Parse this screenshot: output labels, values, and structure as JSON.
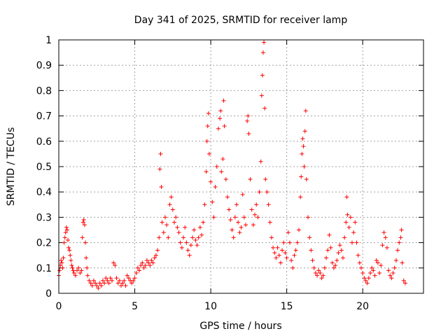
{
  "chart_data": {
    "type": "scatter",
    "title": "Day 341 of 2025, SRMTID for receiver lamp",
    "xlabel": "GPS time / hours",
    "ylabel": "SRMTID / TECUs",
    "xlim": [
      0,
      24
    ],
    "ylim": [
      0,
      1
    ],
    "x_ticks": [
      0,
      5,
      10,
      15,
      20
    ],
    "x_tick_labels": [
      "0",
      "5",
      "10",
      "15",
      "20"
    ],
    "y_ticks": [
      0,
      0.1,
      0.2,
      0.3,
      0.4,
      0.5,
      0.6,
      0.7,
      0.8,
      0.9,
      1
    ],
    "y_tick_labels": [
      "0",
      "0.1",
      "0.2",
      "0.3",
      "0.4",
      "0.5",
      "0.6",
      "0.7",
      "0.8",
      "0.9",
      "1"
    ],
    "grid": true,
    "marker": "+",
    "color": "#ff0000",
    "series": [
      {
        "name": "SRMTID",
        "points": [
          [
            0.0,
            0.07
          ],
          [
            0.05,
            0.09
          ],
          [
            0.1,
            0.11
          ],
          [
            0.15,
            0.13
          ],
          [
            0.2,
            0.12
          ],
          [
            0.25,
            0.1
          ],
          [
            0.3,
            0.14
          ],
          [
            0.35,
            0.2
          ],
          [
            0.4,
            0.22
          ],
          [
            0.45,
            0.24
          ],
          [
            0.5,
            0.26
          ],
          [
            0.55,
            0.25
          ],
          [
            0.6,
            0.21
          ],
          [
            0.65,
            0.18
          ],
          [
            0.7,
            0.17
          ],
          [
            0.75,
            0.15
          ],
          [
            0.8,
            0.13
          ],
          [
            0.85,
            0.11
          ],
          [
            0.9,
            0.1
          ],
          [
            0.95,
            0.09
          ],
          [
            1.0,
            0.08
          ],
          [
            1.1,
            0.07
          ],
          [
            1.2,
            0.09
          ],
          [
            1.3,
            0.1
          ],
          [
            1.4,
            0.08
          ],
          [
            1.5,
            0.09
          ],
          [
            1.55,
            0.22
          ],
          [
            1.6,
            0.28
          ],
          [
            1.65,
            0.29
          ],
          [
            1.7,
            0.27
          ],
          [
            1.75,
            0.2
          ],
          [
            1.8,
            0.14
          ],
          [
            1.85,
            0.1
          ],
          [
            1.9,
            0.07
          ],
          [
            2.0,
            0.05
          ],
          [
            2.1,
            0.04
          ],
          [
            2.2,
            0.03
          ],
          [
            2.3,
            0.05
          ],
          [
            2.4,
            0.04
          ],
          [
            2.5,
            0.03
          ],
          [
            2.6,
            0.02
          ],
          [
            2.7,
            0.04
          ],
          [
            2.8,
            0.03
          ],
          [
            2.9,
            0.05
          ],
          [
            3.0,
            0.04
          ],
          [
            3.1,
            0.06
          ],
          [
            3.2,
            0.05
          ],
          [
            3.3,
            0.04
          ],
          [
            3.4,
            0.06
          ],
          [
            3.5,
            0.05
          ],
          [
            3.6,
            0.12
          ],
          [
            3.7,
            0.11
          ],
          [
            3.8,
            0.06
          ],
          [
            3.9,
            0.04
          ],
          [
            4.0,
            0.05
          ],
          [
            4.1,
            0.03
          ],
          [
            4.2,
            0.04
          ],
          [
            4.3,
            0.05
          ],
          [
            4.4,
            0.03
          ],
          [
            4.5,
            0.07
          ],
          [
            4.6,
            0.06
          ],
          [
            4.7,
            0.05
          ],
          [
            4.8,
            0.04
          ],
          [
            4.9,
            0.05
          ],
          [
            5.0,
            0.06
          ],
          [
            5.1,
            0.08
          ],
          [
            5.2,
            0.1
          ],
          [
            5.3,
            0.09
          ],
          [
            5.4,
            0.11
          ],
          [
            5.5,
            0.12
          ],
          [
            5.6,
            0.1
          ],
          [
            5.7,
            0.11
          ],
          [
            5.8,
            0.13
          ],
          [
            5.9,
            0.12
          ],
          [
            6.0,
            0.11
          ],
          [
            6.1,
            0.13
          ],
          [
            6.2,
            0.12
          ],
          [
            6.3,
            0.14
          ],
          [
            6.4,
            0.15
          ],
          [
            6.5,
            0.17
          ],
          [
            6.6,
            0.22
          ],
          [
            6.65,
            0.49
          ],
          [
            6.7,
            0.55
          ],
          [
            6.75,
            0.42
          ],
          [
            6.8,
            0.28
          ],
          [
            6.9,
            0.24
          ],
          [
            7.0,
            0.3
          ],
          [
            7.1,
            0.27
          ],
          [
            7.2,
            0.22
          ],
          [
            7.3,
            0.35
          ],
          [
            7.4,
            0.38
          ],
          [
            7.5,
            0.33
          ],
          [
            7.6,
            0.28
          ],
          [
            7.7,
            0.3
          ],
          [
            7.8,
            0.26
          ],
          [
            7.9,
            0.24
          ],
          [
            8.0,
            0.2
          ],
          [
            8.1,
            0.18
          ],
          [
            8.2,
            0.22
          ],
          [
            8.3,
            0.26
          ],
          [
            8.4,
            0.2
          ],
          [
            8.5,
            0.17
          ],
          [
            8.6,
            0.15
          ],
          [
            8.7,
            0.19
          ],
          [
            8.8,
            0.22
          ],
          [
            8.9,
            0.25
          ],
          [
            9.0,
            0.21
          ],
          [
            9.1,
            0.19
          ],
          [
            9.2,
            0.22
          ],
          [
            9.3,
            0.26
          ],
          [
            9.4,
            0.23
          ],
          [
            9.5,
            0.28
          ],
          [
            9.6,
            0.35
          ],
          [
            9.7,
            0.48
          ],
          [
            9.75,
            0.6
          ],
          [
            9.8,
            0.66
          ],
          [
            9.85,
            0.71
          ],
          [
            9.9,
            0.55
          ],
          [
            10.0,
            0.44
          ],
          [
            10.1,
            0.36
          ],
          [
            10.2,
            0.3
          ],
          [
            10.3,
            0.42
          ],
          [
            10.4,
            0.5
          ],
          [
            10.5,
            0.65
          ],
          [
            10.6,
            0.69
          ],
          [
            10.65,
            0.72
          ],
          [
            10.7,
            0.48
          ],
          [
            10.8,
            0.53
          ],
          [
            10.85,
            0.76
          ],
          [
            10.9,
            0.66
          ],
          [
            11.0,
            0.45
          ],
          [
            11.1,
            0.38
          ],
          [
            11.2,
            0.33
          ],
          [
            11.3,
            0.29
          ],
          [
            11.4,
            0.25
          ],
          [
            11.5,
            0.22
          ],
          [
            11.6,
            0.3
          ],
          [
            11.7,
            0.35
          ],
          [
            11.8,
            0.28
          ],
          [
            11.9,
            0.24
          ],
          [
            12.0,
            0.26
          ],
          [
            12.1,
            0.39
          ],
          [
            12.2,
            0.3
          ],
          [
            12.3,
            0.27
          ],
          [
            12.4,
            0.68
          ],
          [
            12.45,
            0.7
          ],
          [
            12.5,
            0.63
          ],
          [
            12.6,
            0.45
          ],
          [
            12.7,
            0.33
          ],
          [
            12.8,
            0.27
          ],
          [
            12.9,
            0.31
          ],
          [
            13.0,
            0.35
          ],
          [
            13.1,
            0.3
          ],
          [
            13.2,
            0.4
          ],
          [
            13.3,
            0.52
          ],
          [
            13.35,
            0.78
          ],
          [
            13.4,
            0.86
          ],
          [
            13.45,
            0.95
          ],
          [
            13.5,
            0.99
          ],
          [
            13.55,
            0.73
          ],
          [
            13.6,
            0.45
          ],
          [
            13.7,
            0.4
          ],
          [
            13.8,
            0.35
          ],
          [
            13.9,
            0.28
          ],
          [
            14.0,
            0.22
          ],
          [
            14.1,
            0.18
          ],
          [
            14.2,
            0.16
          ],
          [
            14.3,
            0.14
          ],
          [
            14.4,
            0.18
          ],
          [
            14.5,
            0.15
          ],
          [
            14.6,
            0.12
          ],
          [
            14.7,
            0.17
          ],
          [
            14.8,
            0.2
          ],
          [
            14.9,
            0.16
          ],
          [
            15.0,
            0.14
          ],
          [
            15.1,
            0.24
          ],
          [
            15.2,
            0.2
          ],
          [
            15.3,
            0.13
          ],
          [
            15.4,
            0.1
          ],
          [
            15.5,
            0.15
          ],
          [
            15.6,
            0.17
          ],
          [
            15.7,
            0.2
          ],
          [
            15.8,
            0.25
          ],
          [
            15.9,
            0.38
          ],
          [
            15.95,
            0.46
          ],
          [
            16.0,
            0.55
          ],
          [
            16.05,
            0.61
          ],
          [
            16.1,
            0.58
          ],
          [
            16.15,
            0.5
          ],
          [
            16.2,
            0.64
          ],
          [
            16.25,
            0.72
          ],
          [
            16.3,
            0.45
          ],
          [
            16.4,
            0.3
          ],
          [
            16.5,
            0.22
          ],
          [
            16.6,
            0.17
          ],
          [
            16.7,
            0.13
          ],
          [
            16.8,
            0.1
          ],
          [
            16.9,
            0.08
          ],
          [
            17.0,
            0.07
          ],
          [
            17.1,
            0.09
          ],
          [
            17.2,
            0.08
          ],
          [
            17.3,
            0.06
          ],
          [
            17.4,
            0.07
          ],
          [
            17.5,
            0.1
          ],
          [
            17.6,
            0.14
          ],
          [
            17.7,
            0.17
          ],
          [
            17.8,
            0.23
          ],
          [
            17.9,
            0.18
          ],
          [
            18.0,
            0.12
          ],
          [
            18.1,
            0.1
          ],
          [
            18.2,
            0.11
          ],
          [
            18.3,
            0.13
          ],
          [
            18.4,
            0.16
          ],
          [
            18.5,
            0.19
          ],
          [
            18.6,
            0.17
          ],
          [
            18.7,
            0.14
          ],
          [
            18.8,
            0.22
          ],
          [
            18.9,
            0.28
          ],
          [
            18.95,
            0.38
          ],
          [
            19.0,
            0.31
          ],
          [
            19.1,
            0.26
          ],
          [
            19.2,
            0.3
          ],
          [
            19.3,
            0.2
          ],
          [
            19.4,
            0.24
          ],
          [
            19.5,
            0.28
          ],
          [
            19.6,
            0.2
          ],
          [
            19.7,
            0.15
          ],
          [
            19.8,
            0.12
          ],
          [
            19.9,
            0.1
          ],
          [
            20.0,
            0.08
          ],
          [
            20.1,
            0.06
          ],
          [
            20.2,
            0.05
          ],
          [
            20.3,
            0.04
          ],
          [
            20.4,
            0.06
          ],
          [
            20.5,
            0.08
          ],
          [
            20.6,
            0.1
          ],
          [
            20.7,
            0.09
          ],
          [
            20.8,
            0.07
          ],
          [
            20.9,
            0.13
          ],
          [
            21.0,
            0.12
          ],
          [
            21.1,
            0.08
          ],
          [
            21.2,
            0.11
          ],
          [
            21.3,
            0.19
          ],
          [
            21.4,
            0.24
          ],
          [
            21.5,
            0.22
          ],
          [
            21.6,
            0.18
          ],
          [
            21.7,
            0.09
          ],
          [
            21.8,
            0.07
          ],
          [
            21.9,
            0.06
          ],
          [
            22.0,
            0.08
          ],
          [
            22.1,
            0.1
          ],
          [
            22.2,
            0.13
          ],
          [
            22.3,
            0.17
          ],
          [
            22.4,
            0.2
          ],
          [
            22.5,
            0.22
          ],
          [
            22.55,
            0.25
          ],
          [
            22.6,
            0.12
          ],
          [
            22.7,
            0.05
          ],
          [
            22.8,
            0.04
          ]
        ]
      }
    ]
  }
}
